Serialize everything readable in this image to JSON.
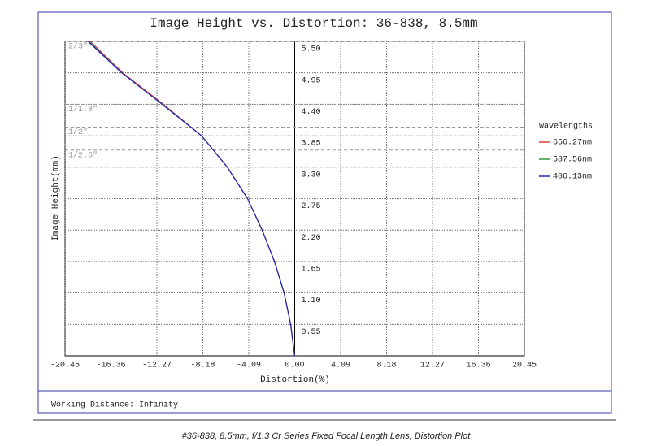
{
  "chart_data": {
    "type": "line",
    "title": "Image Height vs. Distortion: 36-838, 8.5mm",
    "x_label": "Distortion(%)",
    "y_label": "Image Height(mm)",
    "legend_title": "Wavelengths",
    "footnote": "Working Distance: Infinity",
    "caption": "#36-838, 8.5mm, f/1.3 Cr Series Fixed Focal Length Lens, Distortion Plot",
    "xlim": [
      -20.45,
      20.45
    ],
    "ylim": [
      0,
      5.5
    ],
    "xticks": [
      -20.45,
      -16.36,
      -12.27,
      -8.18,
      -4.09,
      {
        "value": 0,
        "label": "0.00"
      },
      4.09,
      8.18,
      12.27,
      16.36,
      20.45
    ],
    "yticks": [
      0.55,
      {
        "value": 1.1,
        "label": "1.10"
      },
      1.65,
      {
        "value": 2.2,
        "label": "2.20"
      },
      2.75,
      {
        "value": 3.3,
        "label": "3.30"
      },
      3.85,
      {
        "value": 4.4,
        "label": "4.40"
      },
      4.95,
      {
        "value": 5.5,
        "label": "5.50"
      }
    ],
    "grid": true,
    "legend_position": "right",
    "sensor_formats": [
      {
        "label": "2/3\"",
        "height": 5.5
      },
      {
        "label": "1/1.8\"",
        "height": 4.4
      },
      {
        "label": "1/2\"",
        "height": 4.0
      },
      {
        "label": "1/2.5\"",
        "height": 3.6
      }
    ],
    "y": [
      0,
      0.55,
      1.1,
      1.65,
      2.2,
      2.75,
      3.3,
      3.85,
      4.4,
      4.95,
      5.5
    ],
    "series": [
      {
        "name": "656.27nm",
        "color": "#e03a3a",
        "x": [
          0,
          -0.36,
          -0.94,
          -1.8,
          -2.9,
          -4.2,
          -6.0,
          -8.3,
          -11.7,
          -15.3,
          -18.2
        ]
      },
      {
        "name": "587.56nm",
        "color": "#2e9a3a",
        "x": [
          0,
          -0.36,
          -0.94,
          -1.8,
          -2.9,
          -4.2,
          -6.0,
          -8.3,
          -11.8,
          -15.4,
          -18.3
        ]
      },
      {
        "name": "486.13nm",
        "color": "#2424b8",
        "x": [
          0,
          -0.36,
          -0.94,
          -1.8,
          -2.9,
          -4.2,
          -6.0,
          -8.3,
          -11.8,
          -15.4,
          -18.4
        ]
      }
    ]
  }
}
